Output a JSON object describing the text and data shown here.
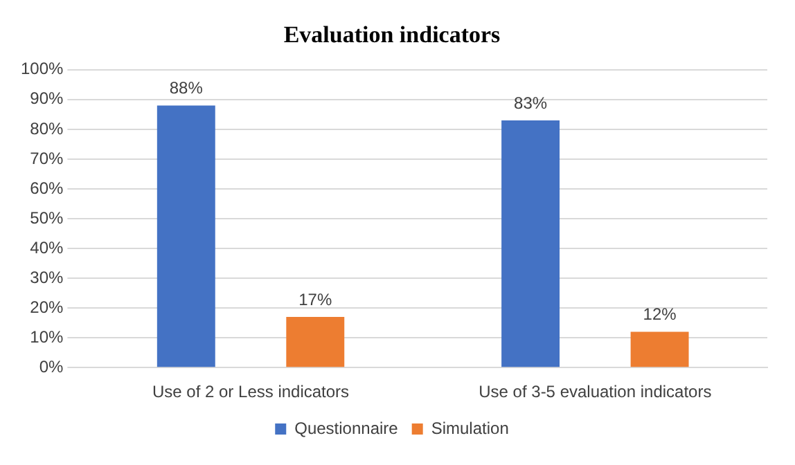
{
  "chart_data": {
    "type": "bar",
    "title": "Evaluation indicators",
    "categories": [
      "Use of 2 or Less indicators",
      "Use of 3-5 evaluation indicators"
    ],
    "series": [
      {
        "name": "Questionnaire",
        "color": "#4472c4",
        "values": [
          88,
          83
        ],
        "value_labels": [
          "88%",
          "83%"
        ]
      },
      {
        "name": "Simulation",
        "color": "#ed7d31",
        "values": [
          17,
          12
        ],
        "value_labels": [
          "17%",
          "12%"
        ]
      }
    ],
    "ylim": [
      0,
      100
    ],
    "yticks": [
      {
        "value": 0,
        "label": "0%"
      },
      {
        "value": 10,
        "label": "10%"
      },
      {
        "value": 20,
        "label": "20%"
      },
      {
        "value": 30,
        "label": "30%"
      },
      {
        "value": 40,
        "label": "40%"
      },
      {
        "value": 50,
        "label": "50%"
      },
      {
        "value": 60,
        "label": "60%"
      },
      {
        "value": 70,
        "label": "70%"
      },
      {
        "value": 80,
        "label": "80%"
      },
      {
        "value": 90,
        "label": "90%"
      },
      {
        "value": 100,
        "label": "100%"
      }
    ],
    "grid": "y",
    "legend": "bottom"
  }
}
